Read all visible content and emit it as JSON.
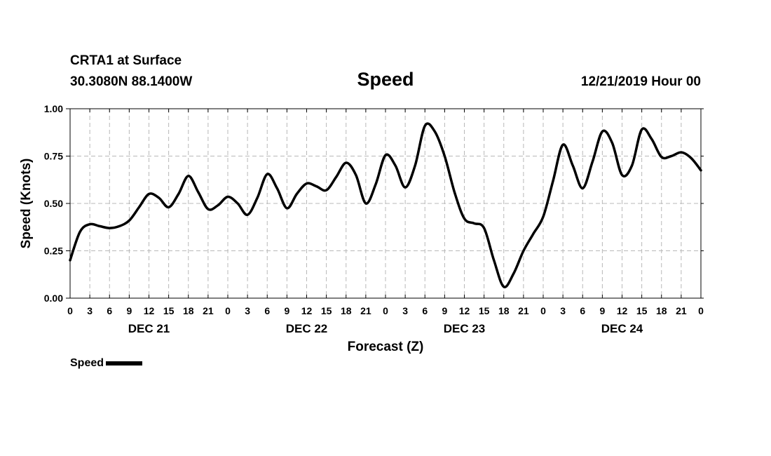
{
  "header": {
    "station": "CRTA1 at Surface",
    "coords": "30.3080N 88.1400W",
    "title": "Speed",
    "datetime": "12/21/2019 Hour 00"
  },
  "chart_data": {
    "type": "line",
    "title": "Speed",
    "xlabel": "Forecast (Z)",
    "ylabel": "Speed (Knots)",
    "ylim": [
      0,
      1
    ],
    "xlim": [
      0,
      96
    ],
    "yticks": [
      "0.00",
      "0.25",
      "0.50",
      "0.75",
      "1.00"
    ],
    "yticks_values": [
      0,
      0.25,
      0.5,
      0.75,
      1.0
    ],
    "xticks": [
      "0",
      "3",
      "6",
      "9",
      "12",
      "15",
      "18",
      "21",
      "0",
      "3",
      "6",
      "9",
      "12",
      "15",
      "18",
      "21",
      "0",
      "3",
      "6",
      "9",
      "12",
      "15",
      "18",
      "21",
      "0",
      "3",
      "6",
      "9",
      "12",
      "15",
      "18",
      "21",
      "0"
    ],
    "day_labels": [
      {
        "label": "DEC 21",
        "hour": 12
      },
      {
        "label": "DEC 22",
        "hour": 36
      },
      {
        "label": "DEC 23",
        "hour": 60
      },
      {
        "label": "DEC 24",
        "hour": 84
      }
    ],
    "grid": true,
    "legend_position": "bottom-left",
    "series": [
      {
        "name": "Speed",
        "color": "#000000",
        "x": [
          0,
          1.5,
          3,
          4.5,
          6,
          7.5,
          9,
          10.5,
          12,
          13.5,
          15,
          16.5,
          18,
          19.5,
          21,
          22.5,
          24,
          25.5,
          27,
          28.5,
          30,
          31.5,
          33,
          34.5,
          36,
          37.5,
          39,
          40.5,
          42,
          43.5,
          45,
          46.5,
          48,
          49.5,
          51,
          52.5,
          54,
          55.5,
          57,
          58.5,
          60,
          61.5,
          63,
          64.5,
          66,
          67.5,
          69,
          70.5,
          72,
          73.5,
          75,
          76.5,
          78,
          79.5,
          81,
          82.5,
          84,
          85.5,
          87,
          88.5,
          90,
          91.5,
          93,
          94.5,
          96
        ],
        "y": [
          0.2,
          0.35,
          0.39,
          0.38,
          0.37,
          0.38,
          0.41,
          0.48,
          0.55,
          0.53,
          0.48,
          0.55,
          0.645,
          0.56,
          0.47,
          0.49,
          0.535,
          0.5,
          0.44,
          0.53,
          0.655,
          0.58,
          0.475,
          0.55,
          0.605,
          0.59,
          0.57,
          0.64,
          0.715,
          0.65,
          0.5,
          0.6,
          0.755,
          0.7,
          0.585,
          0.7,
          0.91,
          0.88,
          0.75,
          0.56,
          0.42,
          0.395,
          0.37,
          0.2,
          0.06,
          0.13,
          0.25,
          0.34,
          0.43,
          0.62,
          0.81,
          0.7,
          0.58,
          0.72,
          0.88,
          0.82,
          0.65,
          0.7,
          0.89,
          0.84,
          0.745,
          0.75,
          0.77,
          0.74,
          0.675
        ]
      }
    ]
  },
  "legend": {
    "label": "Speed"
  }
}
